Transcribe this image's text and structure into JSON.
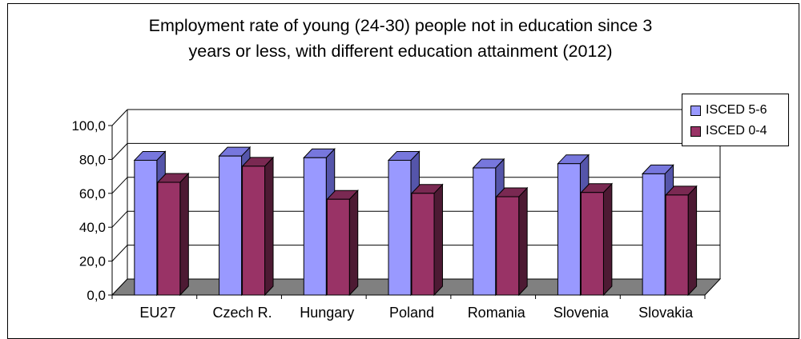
{
  "chart_data": {
    "type": "bar",
    "title_lines": [
      "Employment rate of young (24-30) people not in education since 3",
      "years or less, with different education attainment (2012)"
    ],
    "categories": [
      "EU27",
      "Czech R.",
      "Hungary",
      "Poland",
      "Romania",
      "Slovenia",
      "Slovakia"
    ],
    "series": [
      {
        "name": "ISCED 5-6",
        "values": [
          79.5,
          82.0,
          81.0,
          79.5,
          75.0,
          77.5,
          71.5
        ]
      },
      {
        "name": "ISCED 0-4",
        "values": [
          66.5,
          76.0,
          56.5,
          60.0,
          58.0,
          60.5,
          59.0
        ]
      }
    ],
    "ylim": [
      0,
      100
    ],
    "yticks": [
      "0,0",
      "20,0",
      "40,0",
      "60,0",
      "80,0",
      "100,0"
    ],
    "grid": true,
    "legend_position": "right",
    "colors": {
      "series_1_front": "#9999FF",
      "series_1_top": "#7777DD",
      "series_1_side": "#5555AA",
      "series_2_front": "#993366",
      "series_2_top": "#7A2952",
      "series_2_side": "#4D1A33",
      "floor": "#808080",
      "grid": "#000000"
    }
  }
}
